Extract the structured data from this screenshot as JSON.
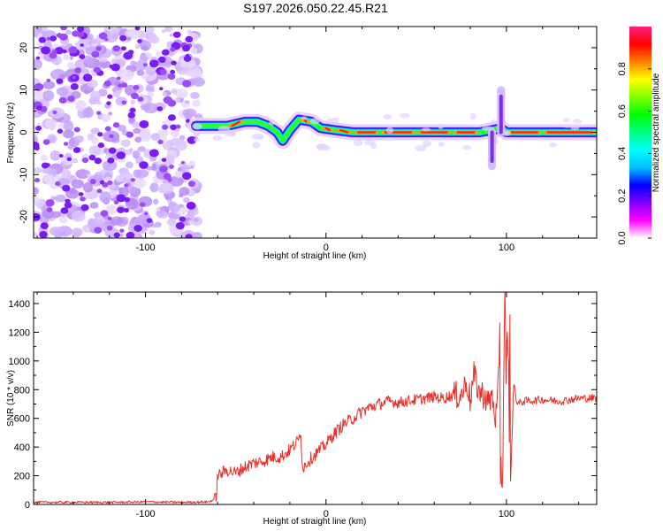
{
  "title": "S197.2026.050.22.45.R21",
  "chart_data": [
    {
      "type": "heatmap",
      "xlabel": "Height of straight line (km)",
      "ylabel": "Frequency (Hz)",
      "xlim": [
        -162,
        150
      ],
      "ylim": [
        -25,
        25
      ],
      "x_ticks": [
        -100,
        0,
        100
      ],
      "y_ticks": [
        -20,
        -10,
        0,
        10,
        20
      ],
      "colorbar": {
        "label": "Normalized spectral amplitude",
        "range": [
          0,
          1
        ],
        "ticks": [
          "0.0",
          "0.2",
          "0.4",
          "0.6",
          "0.8"
        ],
        "colors": [
          "#ffffff",
          "#ff00ff",
          "#8000ff",
          "#0000ff",
          "#00bfff",
          "#00ffff",
          "#00ff80",
          "#00ff00",
          "#80ff00",
          "#ffff00",
          "#ff8000",
          "#ff0000",
          "#ff2080"
        ]
      },
      "noise_region_x": [
        -162,
        -72
      ],
      "ridge": [
        {
          "x": -72,
          "freq": 1.5,
          "amp": 0.5
        },
        {
          "x": -65,
          "freq": 1.5,
          "amp": 0.6
        },
        {
          "x": -55,
          "freq": 1.5,
          "amp": 0.8
        },
        {
          "x": -45,
          "freq": 2.5,
          "amp": 0.7
        },
        {
          "x": -38,
          "freq": 2.5,
          "amp": 0.6
        },
        {
          "x": -32,
          "freq": 1.5,
          "amp": 0.6
        },
        {
          "x": -27,
          "freq": 0.0,
          "amp": 0.5
        },
        {
          "x": -24,
          "freq": -2.0,
          "amp": 0.5
        },
        {
          "x": -20,
          "freq": 0.5,
          "amp": 0.6
        },
        {
          "x": -15,
          "freq": 3.0,
          "amp": 0.8
        },
        {
          "x": -8,
          "freq": 2.5,
          "amp": 0.7
        },
        {
          "x": -3,
          "freq": 1.0,
          "amp": 0.7
        },
        {
          "x": 5,
          "freq": 0.5,
          "amp": 0.8
        },
        {
          "x": 15,
          "freq": 0.0,
          "amp": 0.9
        },
        {
          "x": 30,
          "freq": 0.0,
          "amp": 0.9
        },
        {
          "x": 50,
          "freq": 0.0,
          "amp": 0.9
        },
        {
          "x": 70,
          "freq": 0.0,
          "amp": 0.9
        },
        {
          "x": 85,
          "freq": 0.0,
          "amp": 0.9
        },
        {
          "x": 92,
          "freq": 0.5,
          "amp": 0.5
        },
        {
          "x": 97,
          "freq": 1.0,
          "amp": 0.5
        },
        {
          "x": 100,
          "freq": 0.0,
          "amp": 0.8
        },
        {
          "x": 120,
          "freq": 0.0,
          "amp": 0.9
        },
        {
          "x": 150,
          "freq": 0.0,
          "amp": 0.9
        }
      ],
      "spikes": [
        {
          "x": 92,
          "freq_range": [
            -8,
            0
          ]
        },
        {
          "x": 97,
          "freq_range": [
            0,
            10
          ]
        }
      ]
    },
    {
      "type": "line",
      "xlabel": "Height of straight line (km)",
      "ylabel": "SNR (10 * v/v)",
      "xlim": [
        -162,
        150
      ],
      "ylim": [
        0,
        1480
      ],
      "x_ticks": [
        -100,
        0,
        100
      ],
      "y_ticks": [
        0,
        200,
        400,
        600,
        800,
        1000,
        1200,
        1400
      ],
      "series": [
        {
          "name": "SNR",
          "color": "#e8302a",
          "x": [
            -162,
            -140,
            -120,
            -100,
            -80,
            -65,
            -61,
            -60,
            -55,
            -50,
            -45,
            -40,
            -35,
            -30,
            -25,
            -20,
            -15,
            -14,
            -13,
            -10,
            -5,
            0,
            5,
            10,
            15,
            20,
            25,
            30,
            35,
            40,
            45,
            50,
            55,
            60,
            65,
            70,
            75,
            78,
            80,
            82,
            85,
            88,
            90,
            92,
            94,
            96,
            98,
            99,
            100,
            101,
            102,
            104,
            106,
            110,
            120,
            130,
            140,
            150
          ],
          "y": [
            15,
            15,
            15,
            18,
            15,
            18,
            40,
            200,
            240,
            220,
            260,
            290,
            300,
            330,
            330,
            380,
            450,
            520,
            250,
            300,
            360,
            420,
            500,
            560,
            600,
            650,
            680,
            700,
            720,
            710,
            720,
            730,
            740,
            750,
            740,
            760,
            760,
            860,
            720,
            900,
            780,
            760,
            700,
            760,
            600,
            820,
            60,
            1470,
            800,
            1300,
            40,
            850,
            700,
            720,
            730,
            720,
            740,
            740
          ]
        }
      ]
    }
  ]
}
